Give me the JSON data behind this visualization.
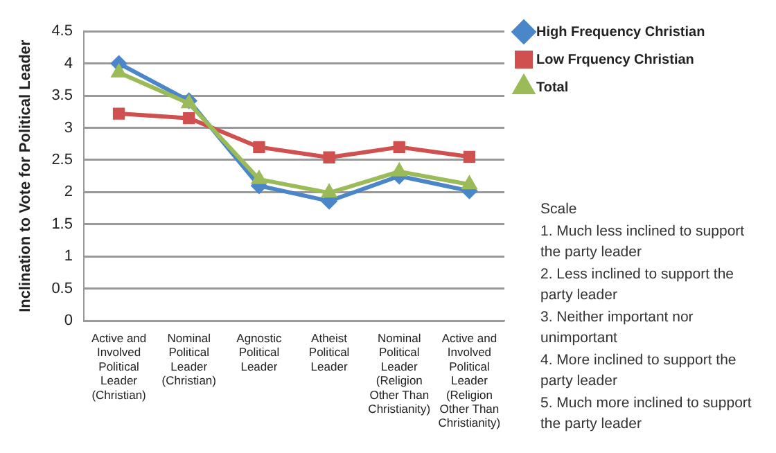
{
  "chart_data": {
    "type": "line",
    "ylabel": "Inclination to Vote for Political Leader",
    "categories": [
      "Active and Involved Political Leader (Christian)",
      "Nominal Political Leader (Christian)",
      "Agnostic Political Leader",
      "Atheist Political Leader",
      "Nominal Political Leader (Religion Other Than Christianity)",
      "Active and Involved Political Leader (Religion Other Than Christianity)"
    ],
    "series": [
      {
        "name": "High Frequency Christian",
        "color": "#4a86c8",
        "marker": "diamond",
        "values": [
          4.0,
          3.42,
          2.1,
          1.86,
          2.25,
          2.02
        ]
      },
      {
        "name": "Low Frquency Christian",
        "color": "#d05050",
        "marker": "square",
        "values": [
          3.22,
          3.15,
          2.7,
          2.54,
          2.7,
          2.55
        ]
      },
      {
        "name": "Total",
        "color": "#9bbb59",
        "marker": "triangle",
        "values": [
          3.86,
          3.38,
          2.2,
          1.99,
          2.32,
          2.12
        ]
      }
    ],
    "ylim": [
      0,
      4.5
    ],
    "yticks": [
      0,
      0.5,
      1,
      1.5,
      2,
      2.5,
      3,
      3.5,
      4,
      4.5
    ],
    "grid": "y",
    "legend": "right",
    "annotations": [
      "Scale",
      "1. Much less inclined to support  the party leader",
      "2. Less inclined to support the party leader",
      "3. Neither important nor unimportant",
      "4. More inclined to support the party leader",
      "5. Much more inclined to support the party leader"
    ]
  }
}
